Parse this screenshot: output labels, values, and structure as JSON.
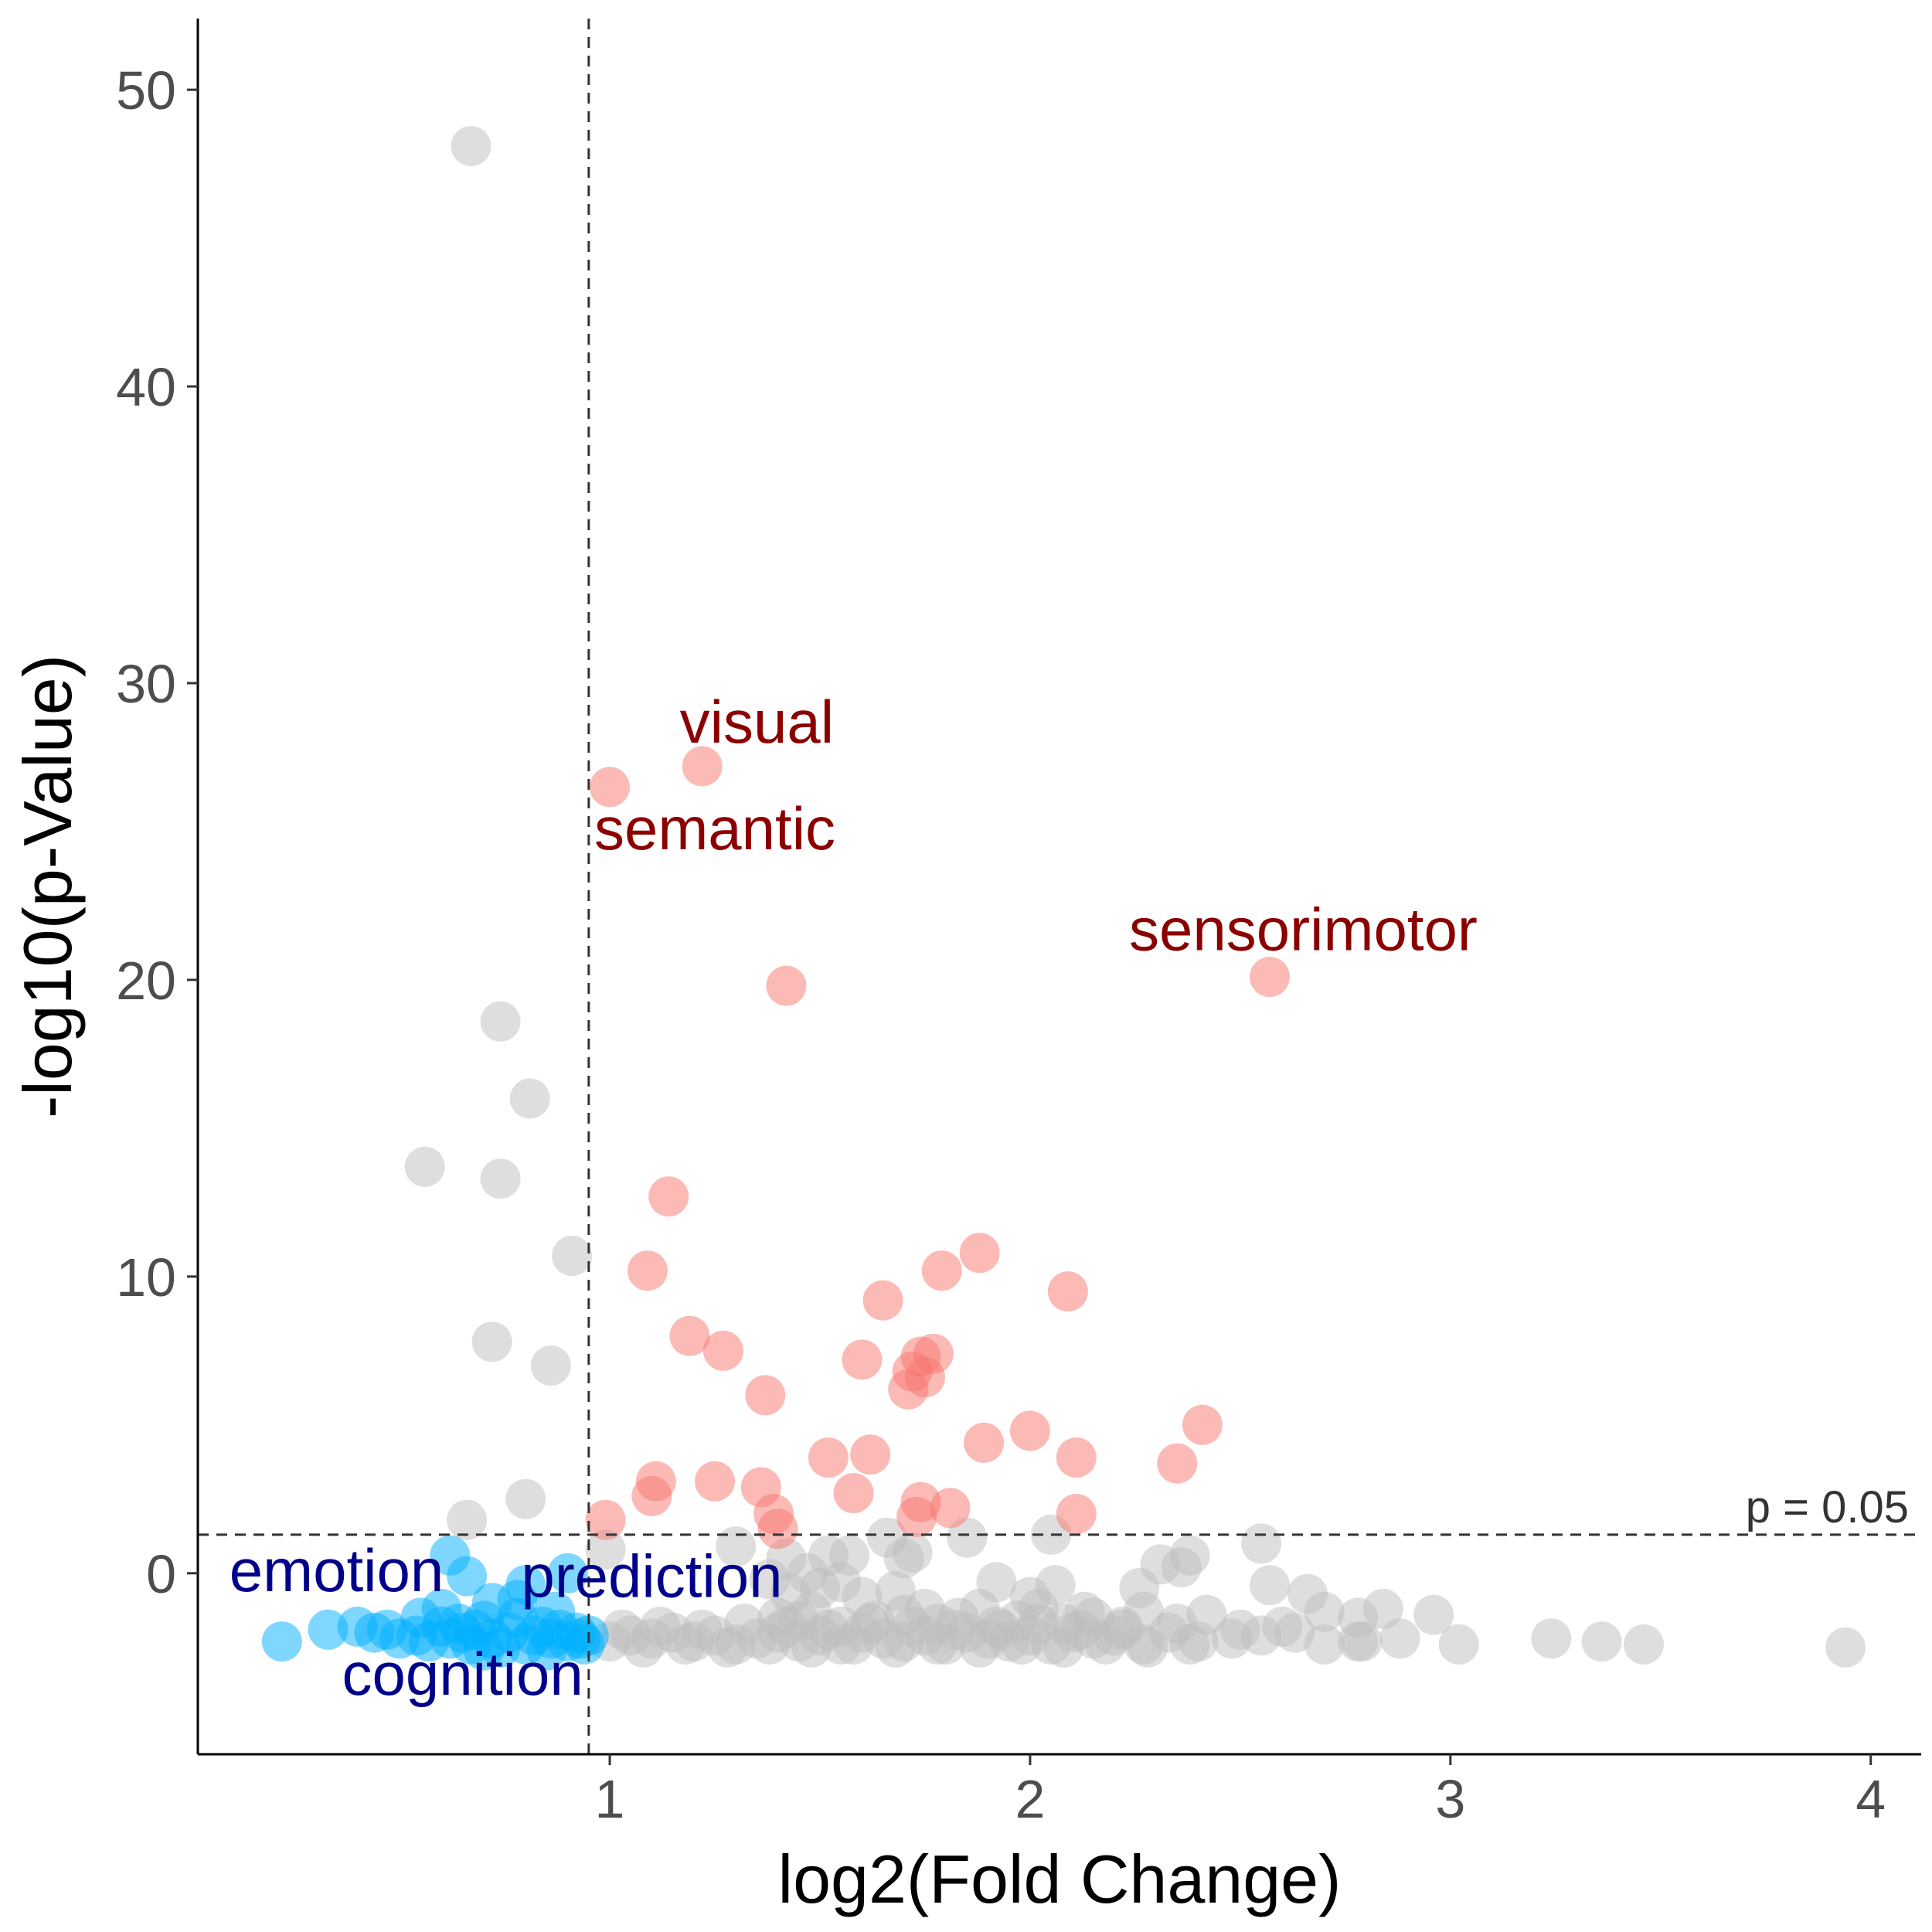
{
  "chart_data": {
    "type": "scatter",
    "xlabel": "log2(Fold Change)",
    "ylabel": "-log10(p-Value)",
    "xlim": [
      0.02,
      4.12
    ],
    "ylim": [
      -6.1,
      52.4
    ],
    "xticks": [
      1,
      2,
      3,
      4
    ],
    "yticks": [
      0,
      10,
      20,
      30,
      40,
      50
    ],
    "grid": false,
    "legend": "none",
    "threshold_x": 0.95,
    "threshold_y": 1.3,
    "threshold_y_label": "p = 0.05",
    "colors": {
      "up": "#F8766D",
      "down": "#00B0FF",
      "ns": "#BEBEBE",
      "up_label": "#8B0000",
      "down_label": "#00008B"
    },
    "annotations": [
      {
        "text": "visual",
        "x": 1.35,
        "y": 28.0,
        "group": "up"
      },
      {
        "text": "semantic",
        "x": 1.25,
        "y": 24.4,
        "group": "up"
      },
      {
        "text": "sensorimotor",
        "x": 2.65,
        "y": 21.0,
        "group": "up"
      },
      {
        "text": "emotion",
        "x": 0.35,
        "y": -0.6,
        "group": "down"
      },
      {
        "text": "prediction",
        "x": 1.1,
        "y": -0.8,
        "group": "down"
      },
      {
        "text": "cognition",
        "x": 0.65,
        "y": -4.1,
        "group": "down"
      }
    ],
    "series": [
      {
        "group": "up",
        "x": [
          1.0,
          1.22,
          1.42,
          2.57,
          1.14,
          1.09,
          1.88,
          1.79,
          2.09,
          1.65,
          1.19,
          1.27,
          1.6,
          1.74,
          1.77,
          1.72,
          1.75,
          1.71,
          1.37,
          2.41,
          2.0,
          1.89,
          1.52,
          1.62,
          2.11,
          2.35,
          1.11,
          1.25,
          1.36,
          1.1,
          1.58,
          1.74,
          1.81,
          1.39,
          2.11,
          1.73,
          0.99,
          1.4
        ],
        "y": [
          26.5,
          27.2,
          19.8,
          20.1,
          12.7,
          10.2,
          10.8,
          10.2,
          9.5,
          9.2,
          8.0,
          7.5,
          7.2,
          7.3,
          7.4,
          6.8,
          6.6,
          6.2,
          6.0,
          5.0,
          4.8,
          4.4,
          3.9,
          4.0,
          3.9,
          3.7,
          3.1,
          3.1,
          2.9,
          2.6,
          2.7,
          2.4,
          2.2,
          2.0,
          2.0,
          1.9,
          1.8,
          1.5
        ]
      },
      {
        "group": "ns",
        "x": [
          0.67,
          0.74,
          0.81,
          0.56,
          0.74,
          0.91,
          0.72,
          0.86,
          0.8,
          0.66,
          0.99,
          1.3,
          1.42,
          1.52,
          1.57,
          1.66,
          1.7,
          1.72,
          1.85,
          2.05,
          1.47,
          1.5,
          1.38,
          1.43,
          1.55,
          1.6,
          1.68,
          1.75,
          1.92,
          2.0,
          2.06,
          2.13,
          2.26,
          2.31,
          2.36,
          2.38,
          2.55,
          2.57,
          2.66,
          2.7,
          1.4,
          1.45,
          1.48,
          1.55,
          1.63,
          1.7,
          1.78,
          1.83,
          1.88,
          1.93,
          1.97,
          2.02,
          2.08,
          2.15,
          2.22,
          2.27,
          2.35,
          2.42,
          2.5,
          2.6,
          2.78,
          2.84,
          2.96,
          1.0,
          1.05,
          1.1,
          1.15,
          1.2,
          1.25,
          1.3,
          1.35,
          1.4,
          1.45,
          1.5,
          1.55,
          1.6,
          1.65,
          1.7,
          1.75,
          1.8,
          1.85,
          1.9,
          1.95,
          2.0,
          2.05,
          2.1,
          2.15,
          2.2,
          2.27,
          2.33,
          2.4,
          2.48,
          2.55,
          2.63,
          2.7,
          2.79,
          2.88,
          3.02,
          3.24,
          3.36,
          3.46,
          3.94,
          1.03,
          1.12,
          1.22,
          1.32,
          1.42,
          1.52,
          1.62,
          1.72,
          1.82,
          1.92,
          2.02,
          2.12,
          2.22,
          1.08,
          1.18,
          1.28,
          1.38,
          1.48,
          1.58,
          1.68,
          1.78,
          1.88,
          1.98,
          2.08,
          2.18,
          2.28,
          2.38,
          2.78
        ],
        "y": [
          48.1,
          18.6,
          16.0,
          13.7,
          13.3,
          10.7,
          7.8,
          7.0,
          2.5,
          1.8,
          0.8,
          0.9,
          0.5,
          0.6,
          0.6,
          1.2,
          0.5,
          0.7,
          1.2,
          1.3,
          0.0,
          -0.5,
          -0.2,
          -0.7,
          -0.3,
          -0.8,
          -0.6,
          -1.2,
          -0.3,
          -0.8,
          -0.4,
          -1.3,
          -0.5,
          0.3,
          0.2,
          0.6,
          1.0,
          -0.4,
          -0.7,
          -1.3,
          -1.5,
          -1.6,
          -1.3,
          -1.8,
          -1.6,
          -1.4,
          -1.7,
          -1.5,
          -1.2,
          -1.9,
          -1.6,
          -1.2,
          -1.7,
          -1.5,
          -1.9,
          -1.3,
          -1.7,
          -1.4,
          -1.9,
          -1.8,
          -1.5,
          -1.2,
          -1.4,
          -2.3,
          -2.1,
          -2.2,
          -2.0,
          -2.3,
          -2.1,
          -2.4,
          -2.2,
          -2.0,
          -2.3,
          -2.1,
          -2.4,
          -2.0,
          -2.2,
          -2.3,
          -2.1,
          -2.4,
          -2.0,
          -2.2,
          -2.3,
          -2.1,
          -2.4,
          -2.0,
          -2.2,
          -2.1,
          -2.4,
          -2.0,
          -2.3,
          -2.2,
          -2.1,
          -2.0,
          -2.4,
          -2.3,
          -2.2,
          -2.4,
          -2.2,
          -2.3,
          -2.4,
          -2.5,
          -1.9,
          -1.8,
          -1.9,
          -1.7,
          -1.8,
          -1.9,
          -1.7,
          -1.8,
          -1.9,
          -1.8,
          -1.7,
          -1.9,
          -1.8,
          -2.5,
          -2.4,
          -2.5,
          -2.4,
          -2.5,
          -2.4,
          -2.5,
          -2.4,
          -2.5,
          -2.4,
          -2.5,
          -2.4,
          -2.5,
          -2.4,
          -2.3
        ]
      },
      {
        "group": "down",
        "x": [
          0.22,
          0.33,
          0.4,
          0.44,
          0.47,
          0.5,
          0.54,
          0.57,
          0.6,
          0.62,
          0.64,
          0.65,
          0.67,
          0.68,
          0.7,
          0.72,
          0.74,
          0.76,
          0.78,
          0.8,
          0.82,
          0.84,
          0.86,
          0.88,
          0.9,
          0.92,
          0.93,
          0.94,
          0.95,
          0.62,
          0.66,
          0.72,
          0.8,
          0.87,
          0.9,
          0.55,
          0.6,
          0.7,
          0.78,
          0.85
        ],
        "y": [
          -2.3,
          -1.9,
          -1.8,
          -2.0,
          -1.9,
          -2.2,
          -2.1,
          -2.3,
          -1.8,
          -2.2,
          -1.7,
          -2.0,
          -2.4,
          -1.9,
          -1.6,
          -2.2,
          -2.5,
          -2.0,
          -1.5,
          -2.4,
          -2.1,
          -1.8,
          -2.2,
          -1.9,
          -2.3,
          -2.0,
          -2.2,
          -2.4,
          -2.1,
          0.6,
          -0.1,
          -1.0,
          -0.4,
          -1.3,
          0.0,
          -1.5,
          -1.2,
          -2.6,
          -0.9,
          -2.6
        ]
      }
    ]
  }
}
